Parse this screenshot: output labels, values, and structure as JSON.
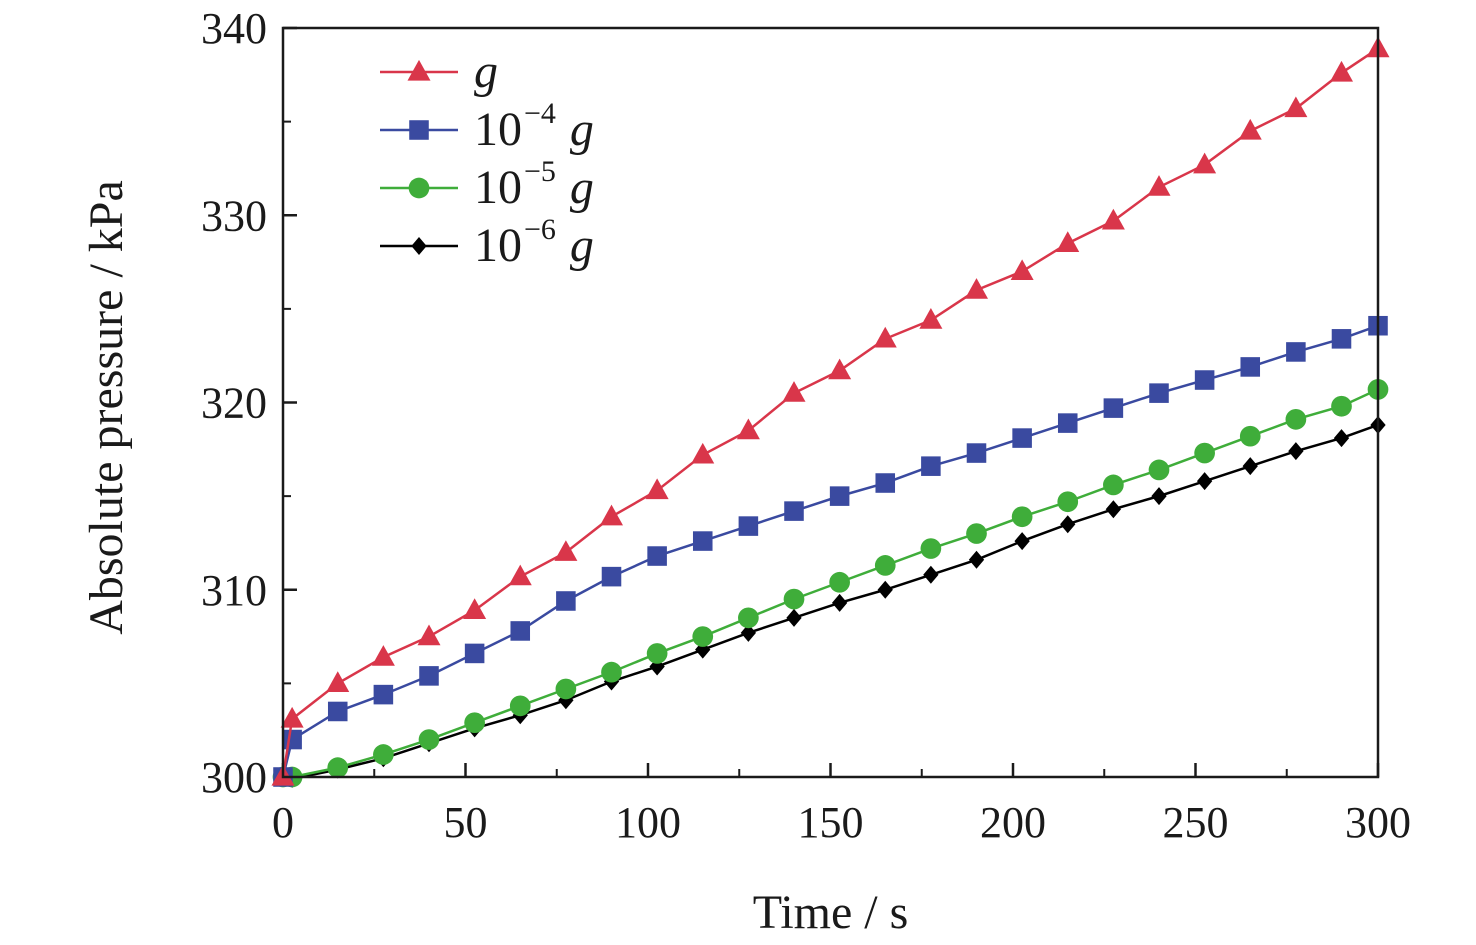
{
  "chart_data": {
    "type": "line",
    "xlabel": "Time / s",
    "ylabel": "Absolute pressure / kPa",
    "xlim": [
      0,
      300
    ],
    "ylim": [
      300,
      340
    ],
    "xticks": [
      0,
      50,
      100,
      150,
      200,
      250,
      300
    ],
    "yticks": [
      300,
      310,
      320,
      330,
      340
    ],
    "grid": false,
    "legend_position": "top-left",
    "series": [
      {
        "name": "g",
        "legend_base": "",
        "legend_exp": "",
        "legend_g": "g",
        "color": "#d9364a",
        "marker": "triangle",
        "x": [
          0,
          2.5,
          15,
          27.5,
          40,
          52.5,
          65,
          77.5,
          90,
          102.5,
          115,
          127.5,
          140,
          152.5,
          165,
          177.5,
          190,
          202.5,
          215,
          227.5,
          240,
          252.5,
          265,
          277.5,
          290,
          300
        ],
        "y": [
          300,
          303.1,
          305.0,
          306.4,
          307.5,
          308.9,
          310.7,
          312.0,
          313.9,
          315.3,
          317.2,
          318.5,
          320.5,
          321.7,
          323.4,
          324.4,
          326.0,
          327.0,
          328.5,
          329.7,
          331.5,
          332.7,
          334.5,
          335.7,
          337.6,
          338.9
        ]
      },
      {
        "name": "10−4 g",
        "legend_base": "10",
        "legend_exp": "−4",
        "legend_g": "g",
        "color": "#3a4aa0",
        "marker": "square",
        "x": [
          0,
          2.5,
          15,
          27.5,
          40,
          52.5,
          65,
          77.5,
          90,
          102.5,
          115,
          127.5,
          140,
          152.5,
          165,
          177.5,
          190,
          202.5,
          215,
          227.5,
          240,
          252.5,
          265,
          277.5,
          290,
          300
        ],
        "y": [
          300,
          302.0,
          303.5,
          304.4,
          305.4,
          306.6,
          307.8,
          309.4,
          310.7,
          311.8,
          312.6,
          313.4,
          314.2,
          315.0,
          315.7,
          316.6,
          317.3,
          318.1,
          318.9,
          319.7,
          320.5,
          321.2,
          321.9,
          322.7,
          323.4,
          324.1
        ]
      },
      {
        "name": "10−5 g",
        "legend_base": "10",
        "legend_exp": "−5",
        "legend_g": "g",
        "color": "#3fad3a",
        "marker": "circle",
        "x": [
          0,
          2.5,
          15,
          27.5,
          40,
          52.5,
          65,
          77.5,
          90,
          102.5,
          115,
          127.5,
          140,
          152.5,
          165,
          177.5,
          190,
          202.5,
          215,
          227.5,
          240,
          252.5,
          265,
          277.5,
          290,
          300
        ],
        "y": [
          300,
          300.0,
          300.5,
          301.2,
          302.0,
          302.9,
          303.8,
          304.7,
          305.6,
          306.6,
          307.5,
          308.5,
          309.5,
          310.4,
          311.3,
          312.2,
          313.0,
          313.9,
          314.7,
          315.6,
          316.4,
          317.3,
          318.2,
          319.1,
          319.8,
          320.7
        ]
      },
      {
        "name": "10−6 g",
        "legend_base": "10",
        "legend_exp": "−6",
        "legend_g": "g",
        "color": "#000000",
        "marker": "diamond",
        "x": [
          0,
          2.5,
          15,
          27.5,
          40,
          52.5,
          65,
          77.5,
          90,
          102.5,
          115,
          127.5,
          140,
          152.5,
          165,
          177.5,
          190,
          202.5,
          215,
          227.5,
          240,
          252.5,
          265,
          277.5,
          290,
          300
        ],
        "y": [
          300,
          299.9,
          300.4,
          301.0,
          301.8,
          302.6,
          303.3,
          304.1,
          305.1,
          305.9,
          306.8,
          307.7,
          308.5,
          309.3,
          310.0,
          310.8,
          311.6,
          312.6,
          313.5,
          314.3,
          315.0,
          315.8,
          316.6,
          317.4,
          318.1,
          318.8
        ]
      }
    ]
  }
}
